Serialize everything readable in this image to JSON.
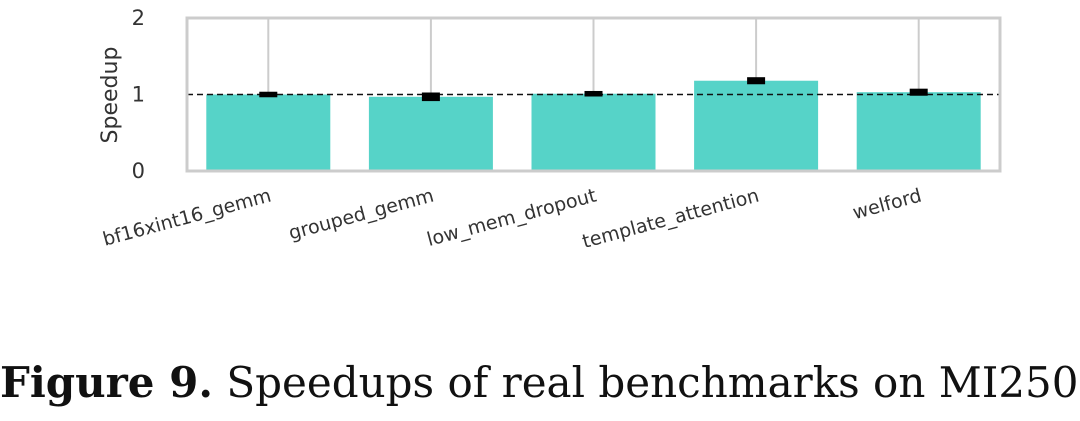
{
  "chart_data": {
    "type": "bar",
    "categories": [
      "bf16xint16_gemm",
      "grouped_gemm",
      "low_mem_dropout",
      "template_attention",
      "welford"
    ],
    "series": [
      {
        "values": [
          1.0,
          0.97,
          1.01,
          1.18,
          1.03
        ],
        "error": [
          0.01,
          0.03,
          0.01,
          0.02,
          0.02
        ],
        "color": "#56d3c8"
      }
    ],
    "ylabel": "Speedup",
    "xlabel": "",
    "ylim": [
      0,
      2
    ],
    "yticks": [
      0,
      1,
      2
    ],
    "reference_line": 1,
    "grid": "vertical",
    "frame_color": "#cccccc",
    "errorbar_color": "#000000"
  },
  "caption": {
    "label": "Figure 9.",
    "text": " Speedups of real benchmarks on MI250."
  }
}
